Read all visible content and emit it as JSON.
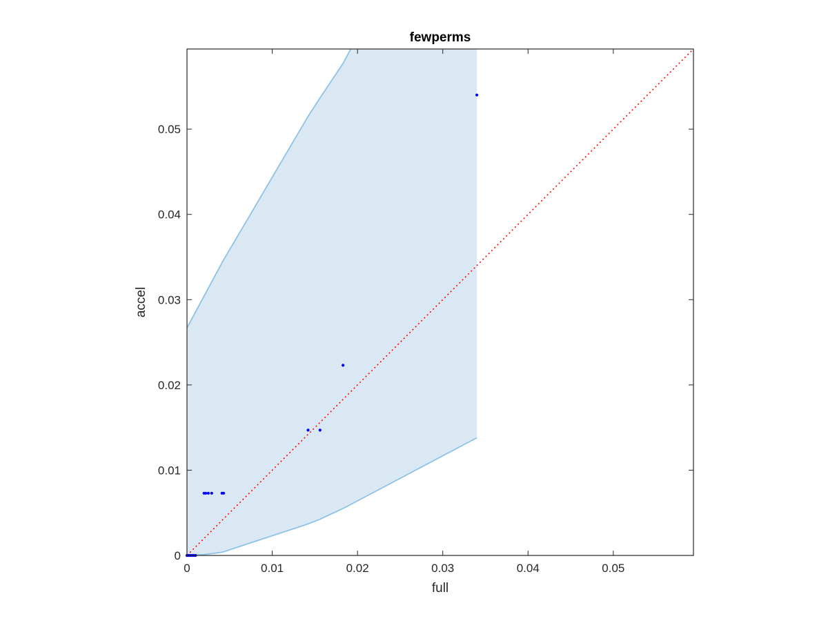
{
  "chart_data": {
    "type": "scatter",
    "title": "fewperms",
    "xlabel": "full",
    "ylabel": "accel",
    "xlim": [
      0,
      0.0594
    ],
    "ylim": [
      0,
      0.0594
    ],
    "xticks": [
      0,
      0.01,
      0.02,
      0.03,
      0.04,
      0.05
    ],
    "xtick_labels": [
      "0",
      "0.01",
      "0.02",
      "0.03",
      "0.04",
      "0.05"
    ],
    "yticks": [
      0,
      0.01,
      0.02,
      0.03,
      0.04,
      0.05
    ],
    "ytick_labels": [
      "0",
      "0.01",
      "0.02",
      "0.03",
      "0.04",
      "0.05"
    ],
    "grid": false,
    "band": {
      "upper": [
        {
          "x": 0,
          "y": 0.0267
        },
        {
          "x": 0.0042,
          "y": 0.0345
        },
        {
          "x": 0.0142,
          "y": 0.0515
        },
        {
          "x": 0.0155,
          "y": 0.0535
        },
        {
          "x": 0.0183,
          "y": 0.0577
        },
        {
          "x": 0.0192,
          "y": 0.0594
        },
        {
          "x": 0.034,
          "y": 0.0594
        }
      ],
      "lower": [
        {
          "x": 0,
          "y": 0
        },
        {
          "x": 0.002,
          "y": 0.0001
        },
        {
          "x": 0.0042,
          "y": 0.0004
        },
        {
          "x": 0.0142,
          "y": 0.0037
        },
        {
          "x": 0.0155,
          "y": 0.0042
        },
        {
          "x": 0.0183,
          "y": 0.0055
        },
        {
          "x": 0.034,
          "y": 0.0138
        }
      ],
      "fill_color": "#d9e8f3",
      "line_color": "#8ec2e5"
    },
    "reference_line": {
      "from": [
        0,
        0
      ],
      "to": [
        0.0594,
        0.0594
      ],
      "color": "#ff0000",
      "style": "dotted"
    },
    "points": {
      "color": "#0000ff",
      "x": [
        0,
        0.0002,
        0.0004,
        0.0006,
        0.0008,
        0.001,
        0.002,
        0.0022,
        0.0025,
        0.0029,
        0.0041,
        0.0043,
        0.0142,
        0.0156,
        0.0183,
        0.034
      ],
      "y": [
        0,
        0,
        0,
        0,
        0,
        0,
        0.0073,
        0.0073,
        0.0073,
        0.0073,
        0.0073,
        0.0073,
        0.0147,
        0.0147,
        0.0223,
        0.054
      ]
    }
  }
}
